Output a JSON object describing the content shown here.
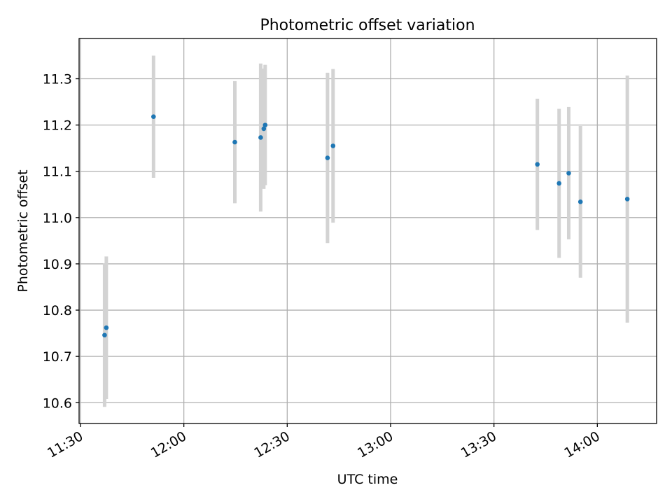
{
  "chart_data": {
    "type": "scatter",
    "title": "Photometric offset variation",
    "xlabel": "UTC time",
    "ylabel": "Photometric offset",
    "x_tick_labels": [
      "11:30",
      "12:00",
      "12:30",
      "13:00",
      "13:30",
      "14:00"
    ],
    "y_tick_labels": [
      "10.6",
      "10.7",
      "10.8",
      "10.9",
      "11.0",
      "11.1",
      "11.2",
      "11.3"
    ],
    "x_ticks": [
      "11:30",
      "12:00",
      "12:30",
      "13:00",
      "13:30",
      "14:00"
    ],
    "y_ticks": [
      10.6,
      10.7,
      10.8,
      10.9,
      11.0,
      11.1,
      11.2,
      11.3
    ],
    "xlim": [
      "11:29.6",
      "14:17.2"
    ],
    "ylim": [
      10.555,
      11.387
    ],
    "grid": true,
    "series": [
      {
        "marker_color": "#1f77b4",
        "errorbar_color": "#d3d3d3",
        "points": [
          {
            "x": "11:37.0",
            "y": 10.746,
            "yerr": 0.155
          },
          {
            "x": "11:37.5",
            "y": 10.762,
            "yerr": 0.154
          },
          {
            "x": "11:51.2",
            "y": 11.218,
            "yerr": 0.132
          },
          {
            "x": "12:14.8",
            "y": 11.163,
            "yerr": 0.132
          },
          {
            "x": "12:22.3",
            "y": 11.173,
            "yerr": 0.16
          },
          {
            "x": "12:23.2",
            "y": 11.192,
            "yerr": 0.13
          },
          {
            "x": "12:23.6",
            "y": 11.2,
            "yerr": 0.13
          },
          {
            "x": "12:41.7",
            "y": 11.129,
            "yerr": 0.184
          },
          {
            "x": "12:43.3",
            "y": 11.155,
            "yerr": 0.166
          },
          {
            "x": "13:42.6",
            "y": 11.115,
            "yerr": 0.142
          },
          {
            "x": "13:48.9",
            "y": 11.074,
            "yerr": 0.161
          },
          {
            "x": "13:51.7",
            "y": 11.096,
            "yerr": 0.143
          },
          {
            "x": "13:55.1",
            "y": 11.034,
            "yerr": 0.164
          },
          {
            "x": "14:08.7",
            "y": 11.04,
            "yerr": 0.267
          }
        ]
      }
    ]
  }
}
